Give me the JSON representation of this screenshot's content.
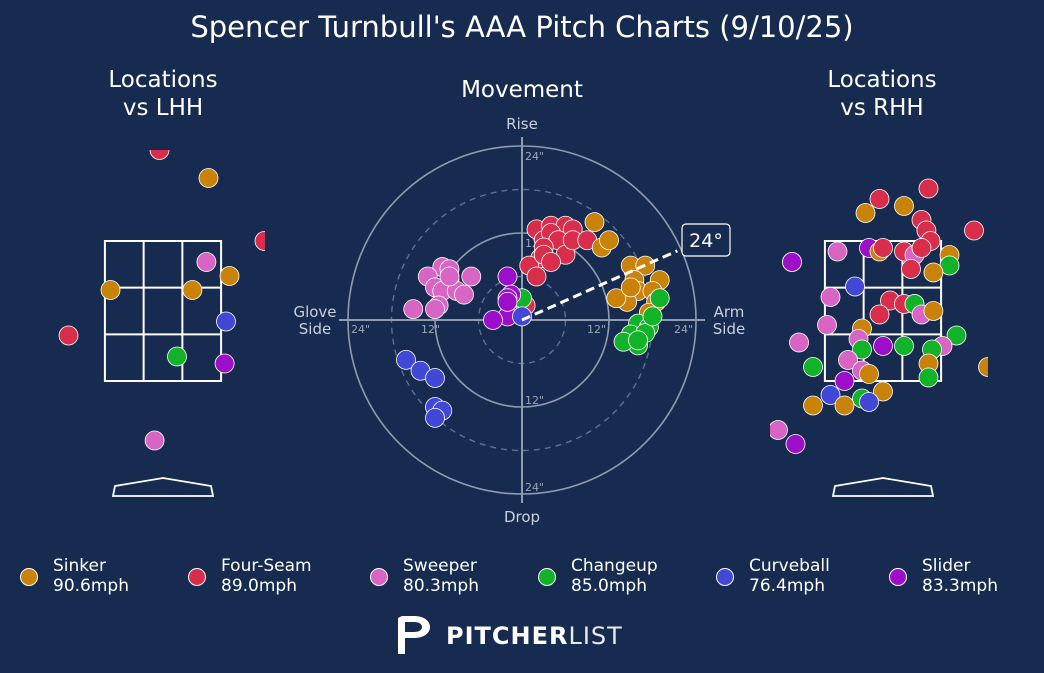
{
  "title": "Spencer Turnbull's AAA Pitch Charts (9/10/25)",
  "panels": {
    "lhh_title": "Locations\nvs LHH",
    "movement_title": "Movement",
    "rhh_title": "Locations\nvs RHH"
  },
  "movement_labels": {
    "top": "Rise",
    "bottom": "Drop",
    "left": "Glove\nSide",
    "right": "Arm\nSide",
    "arm_angle": "24°",
    "rings": [
      "12\"",
      "24\""
    ]
  },
  "logo": {
    "bold": "PITCHER",
    "light": "LIST"
  },
  "pitch_types": [
    {
      "name": "Sinker",
      "speed": "90.6mph",
      "color": "#c98308"
    },
    {
      "name": "Four-Seam",
      "speed": "89.0mph",
      "color": "#d92e4b"
    },
    {
      "name": "Sweeper",
      "speed": "80.3mph",
      "color": "#d865c4"
    },
    {
      "name": "Changeup",
      "speed": "85.0mph",
      "color": "#12b328"
    },
    {
      "name": "Curveball",
      "speed": "76.4mph",
      "color": "#4248d6"
    },
    {
      "name": "Slider",
      "speed": "83.3mph",
      "color": "#9d0ec9"
    }
  ],
  "chart_data": [
    {
      "type": "scatter",
      "title": "Locations vs LHH",
      "x_range": [
        -2.5,
        2.5
      ],
      "y_range": [
        -0.5,
        5.2
      ],
      "strike_zone": {
        "x": [
          -0.83,
          0.83
        ],
        "y": [
          1.5,
          3.5
        ]
      },
      "points": [
        {
          "pitch": "Four-Seam",
          "x": -0.05,
          "y": 4.8
        },
        {
          "pitch": "Sinker",
          "x": 0.65,
          "y": 4.4
        },
        {
          "pitch": "Four-Seam",
          "x": 1.45,
          "y": 3.5
        },
        {
          "pitch": "Sweeper",
          "x": 0.62,
          "y": 3.2
        },
        {
          "pitch": "Sinker",
          "x": 0.95,
          "y": 3.0
        },
        {
          "pitch": "Sinker",
          "x": -0.75,
          "y": 2.8
        },
        {
          "pitch": "Sinker",
          "x": 0.42,
          "y": 2.8
        },
        {
          "pitch": "Curveball",
          "x": 0.9,
          "y": 2.35
        },
        {
          "pitch": "Four-Seam",
          "x": -1.35,
          "y": 2.15
        },
        {
          "pitch": "Changeup",
          "x": 0.2,
          "y": 1.85
        },
        {
          "pitch": "Slider",
          "x": 0.88,
          "y": 1.75
        },
        {
          "pitch": "Sweeper",
          "x": -0.12,
          "y": 0.65
        }
      ]
    },
    {
      "type": "scatter",
      "title": "Movement",
      "x_label": "Glove Side / Arm Side",
      "y_label": "Drop / Rise",
      "x_range": [
        -26,
        26
      ],
      "y_range": [
        -26,
        26
      ],
      "rings": [
        12,
        24
      ],
      "arm_angle_deg": 24,
      "points": [
        {
          "pitch": "Four-Seam",
          "x": 2,
          "y": 12.5
        },
        {
          "pitch": "Four-Seam",
          "x": 4,
          "y": 13
        },
        {
          "pitch": "Four-Seam",
          "x": 6,
          "y": 13
        },
        {
          "pitch": "Four-Seam",
          "x": 7,
          "y": 12.5
        },
        {
          "pitch": "Four-Seam",
          "x": 3,
          "y": 11
        },
        {
          "pitch": "Four-Seam",
          "x": 4,
          "y": 12
        },
        {
          "pitch": "Four-Seam",
          "x": 5,
          "y": 11
        },
        {
          "pitch": "Four-Seam",
          "x": 3,
          "y": 10
        },
        {
          "pitch": "Four-Seam",
          "x": 2.5,
          "y": 8.5
        },
        {
          "pitch": "Four-Seam",
          "x": 1,
          "y": 7.5
        },
        {
          "pitch": "Four-Seam",
          "x": 3,
          "y": 9
        },
        {
          "pitch": "Four-Seam",
          "x": 6,
          "y": 9
        },
        {
          "pitch": "Four-Seam",
          "x": 7,
          "y": 11
        },
        {
          "pitch": "Four-Seam",
          "x": 9,
          "y": 11
        },
        {
          "pitch": "Four-Seam",
          "x": 4,
          "y": 8
        },
        {
          "pitch": "Four-Seam",
          "x": 2,
          "y": 6
        },
        {
          "pitch": "Four-Seam",
          "x": 0.5,
          "y": 2
        },
        {
          "pitch": "Sinker",
          "x": 10,
          "y": 13.5
        },
        {
          "pitch": "Sinker",
          "x": 11,
          "y": 10
        },
        {
          "pitch": "Sinker",
          "x": 12,
          "y": 11
        },
        {
          "pitch": "Sinker",
          "x": 15,
          "y": 7.5
        },
        {
          "pitch": "Sinker",
          "x": 17,
          "y": 7.5
        },
        {
          "pitch": "Sinker",
          "x": 15.5,
          "y": 5.5
        },
        {
          "pitch": "Sinker",
          "x": 16,
          "y": 4
        },
        {
          "pitch": "Sinker",
          "x": 14.5,
          "y": 2.5
        },
        {
          "pitch": "Sinker",
          "x": 13,
          "y": 3
        },
        {
          "pitch": "Sinker",
          "x": 15,
          "y": 4.5
        },
        {
          "pitch": "Sinker",
          "x": 19,
          "y": 5.5
        },
        {
          "pitch": "Sinker",
          "x": 18,
          "y": 4
        },
        {
          "pitch": "Sinker",
          "x": 18.5,
          "y": 2.5
        },
        {
          "pitch": "Sinker",
          "x": 17.5,
          "y": 1
        },
        {
          "pitch": "Changeup",
          "x": 16,
          "y": -0.5
        },
        {
          "pitch": "Changeup",
          "x": 17.5,
          "y": -1
        },
        {
          "pitch": "Changeup",
          "x": 15,
          "y": -2
        },
        {
          "pitch": "Changeup",
          "x": 16,
          "y": -3.5
        },
        {
          "pitch": "Changeup",
          "x": 17,
          "y": -1.8
        },
        {
          "pitch": "Changeup",
          "x": 19,
          "y": 3
        },
        {
          "pitch": "Changeup",
          "x": 14,
          "y": -3
        },
        {
          "pitch": "Changeup",
          "x": 16,
          "y": -2.8
        },
        {
          "pitch": "Changeup",
          "x": 18,
          "y": 0.5
        },
        {
          "pitch": "Changeup",
          "x": 0,
          "y": 3
        },
        {
          "pitch": "Sweeper",
          "x": -11,
          "y": 7.3
        },
        {
          "pitch": "Sweeper",
          "x": -10,
          "y": 7
        },
        {
          "pitch": "Sweeper",
          "x": -13,
          "y": 6
        },
        {
          "pitch": "Sweeper",
          "x": -10,
          "y": 5.5
        },
        {
          "pitch": "Sweeper",
          "x": -12,
          "y": 4.5
        },
        {
          "pitch": "Sweeper",
          "x": -11,
          "y": 4
        },
        {
          "pitch": "Sweeper",
          "x": -9,
          "y": 4
        },
        {
          "pitch": "Sweeper",
          "x": -8,
          "y": 3.5
        },
        {
          "pitch": "Sweeper",
          "x": -7,
          "y": 6
        },
        {
          "pitch": "Sweeper",
          "x": -10,
          "y": 6
        },
        {
          "pitch": "Sweeper",
          "x": -11.5,
          "y": 2
        },
        {
          "pitch": "Sweeper",
          "x": -15,
          "y": 1.5
        },
        {
          "pitch": "Sweeper",
          "x": -12,
          "y": 1.5
        },
        {
          "pitch": "Slider",
          "x": -2,
          "y": 6
        },
        {
          "pitch": "Slider",
          "x": -1.5,
          "y": 3.5
        },
        {
          "pitch": "Slider",
          "x": -2,
          "y": 3
        },
        {
          "pitch": "Slider",
          "x": -2,
          "y": 0.5
        },
        {
          "pitch": "Slider",
          "x": -4,
          "y": 0
        },
        {
          "pitch": "Slider",
          "x": -2,
          "y": 2.5
        },
        {
          "pitch": "Curveball",
          "x": -16,
          "y": -5.5
        },
        {
          "pitch": "Curveball",
          "x": -14,
          "y": -7
        },
        {
          "pitch": "Curveball",
          "x": -12,
          "y": -8
        },
        {
          "pitch": "Curveball",
          "x": -12,
          "y": -12
        },
        {
          "pitch": "Curveball",
          "x": -11,
          "y": -12.5
        },
        {
          "pitch": "Curveball",
          "x": -12,
          "y": -13.5
        },
        {
          "pitch": "Curveball",
          "x": 0,
          "y": 0.5
        }
      ]
    },
    {
      "type": "scatter",
      "title": "Locations vs RHH",
      "x_range": [
        -2.5,
        2.5
      ],
      "y_range": [
        -0.5,
        5.2
      ],
      "strike_zone": {
        "x": [
          -0.83,
          0.83
        ],
        "y": [
          1.5,
          3.5
        ]
      },
      "points": [
        {
          "pitch": "Four-Seam",
          "x": 0.65,
          "y": 4.25
        },
        {
          "pitch": "Four-Seam",
          "x": -0.05,
          "y": 4.1
        },
        {
          "pitch": "Sinker",
          "x": -0.25,
          "y": 3.9
        },
        {
          "pitch": "Sinker",
          "x": 0.3,
          "y": 4.0
        },
        {
          "pitch": "Four-Seam",
          "x": 0.55,
          "y": 3.8
        },
        {
          "pitch": "Four-Seam",
          "x": 0.62,
          "y": 3.65
        },
        {
          "pitch": "Four-Seam",
          "x": 0.68,
          "y": 3.5
        },
        {
          "pitch": "Four-Seam",
          "x": 1.3,
          "y": 3.65
        },
        {
          "pitch": "Sweeper",
          "x": -0.65,
          "y": 3.35
        },
        {
          "pitch": "Slider",
          "x": -0.2,
          "y": 3.4
        },
        {
          "pitch": "Sinker",
          "x": -0.05,
          "y": 3.35
        },
        {
          "pitch": "Four-Seam",
          "x": 0.0,
          "y": 3.4
        },
        {
          "pitch": "Four-Seam",
          "x": 0.3,
          "y": 3.35
        },
        {
          "pitch": "Sweeper",
          "x": 0.45,
          "y": 3.3
        },
        {
          "pitch": "Four-Seam",
          "x": 0.55,
          "y": 3.4
        },
        {
          "pitch": "Sinker",
          "x": 0.95,
          "y": 3.3
        },
        {
          "pitch": "Changeup",
          "x": 0.95,
          "y": 3.15
        },
        {
          "pitch": "Slider",
          "x": -1.3,
          "y": 3.2
        },
        {
          "pitch": "Four-Seam",
          "x": 0.4,
          "y": 3.1
        },
        {
          "pitch": "Sinker",
          "x": 0.72,
          "y": 3.05
        },
        {
          "pitch": "Curveball",
          "x": -0.4,
          "y": 2.85
        },
        {
          "pitch": "Sweeper",
          "x": -0.75,
          "y": 2.7
        },
        {
          "pitch": "Four-Seam",
          "x": 0.1,
          "y": 2.65
        },
        {
          "pitch": "Four-Seam",
          "x": 0.3,
          "y": 2.6
        },
        {
          "pitch": "Four-Seam",
          "x": 0.45,
          "y": 2.6
        },
        {
          "pitch": "Changeup",
          "x": 0.45,
          "y": 2.6
        },
        {
          "pitch": "Sweeper",
          "x": 0.55,
          "y": 2.45
        },
        {
          "pitch": "Sinker",
          "x": 0.72,
          "y": 2.5
        },
        {
          "pitch": "Four-Seam",
          "x": -0.05,
          "y": 2.45
        },
        {
          "pitch": "Sweeper",
          "x": -0.8,
          "y": 2.3
        },
        {
          "pitch": "Sinker",
          "x": -0.3,
          "y": 2.25
        },
        {
          "pitch": "Sweeper",
          "x": -0.35,
          "y": 2.1
        },
        {
          "pitch": "Changeup",
          "x": 1.05,
          "y": 2.15
        },
        {
          "pitch": "Sweeper",
          "x": -1.2,
          "y": 2.05
        },
        {
          "pitch": "Slider",
          "x": 0.0,
          "y": 2.0
        },
        {
          "pitch": "Changeup",
          "x": 0.3,
          "y": 2.0
        },
        {
          "pitch": "Sweeper",
          "x": 0.85,
          "y": 2.0
        },
        {
          "pitch": "Changeup",
          "x": -0.3,
          "y": 1.95
        },
        {
          "pitch": "Changeup",
          "x": 0.7,
          "y": 1.95
        },
        {
          "pitch": "Sweeper",
          "x": -0.5,
          "y": 1.8
        },
        {
          "pitch": "Sweeper",
          "x": -0.3,
          "y": 1.65
        },
        {
          "pitch": "Changeup",
          "x": -1.0,
          "y": 1.7
        },
        {
          "pitch": "Sinker",
          "x": 0.65,
          "y": 1.75
        },
        {
          "pitch": "Sinker",
          "x": -0.2,
          "y": 1.6
        },
        {
          "pitch": "Slider",
          "x": -0.55,
          "y": 1.5
        },
        {
          "pitch": "Changeup",
          "x": 0.65,
          "y": 1.55
        },
        {
          "pitch": "Sinker",
          "x": 1.5,
          "y": 1.7
        },
        {
          "pitch": "Sinker",
          "x": 0.0,
          "y": 1.35
        },
        {
          "pitch": "Changeup",
          "x": -0.3,
          "y": 1.25
        },
        {
          "pitch": "Curveball",
          "x": -0.2,
          "y": 1.2
        },
        {
          "pitch": "Curveball",
          "x": -0.75,
          "y": 1.3
        },
        {
          "pitch": "Sinker",
          "x": -0.55,
          "y": 1.15
        },
        {
          "pitch": "Sinker",
          "x": -1.0,
          "y": 1.15
        },
        {
          "pitch": "Sweeper",
          "x": -1.5,
          "y": 0.8
        },
        {
          "pitch": "Slider",
          "x": -1.25,
          "y": 0.6
        },
        {
          "pitch": "Slider",
          "x": -1.3,
          "y": 3.2
        }
      ]
    }
  ]
}
